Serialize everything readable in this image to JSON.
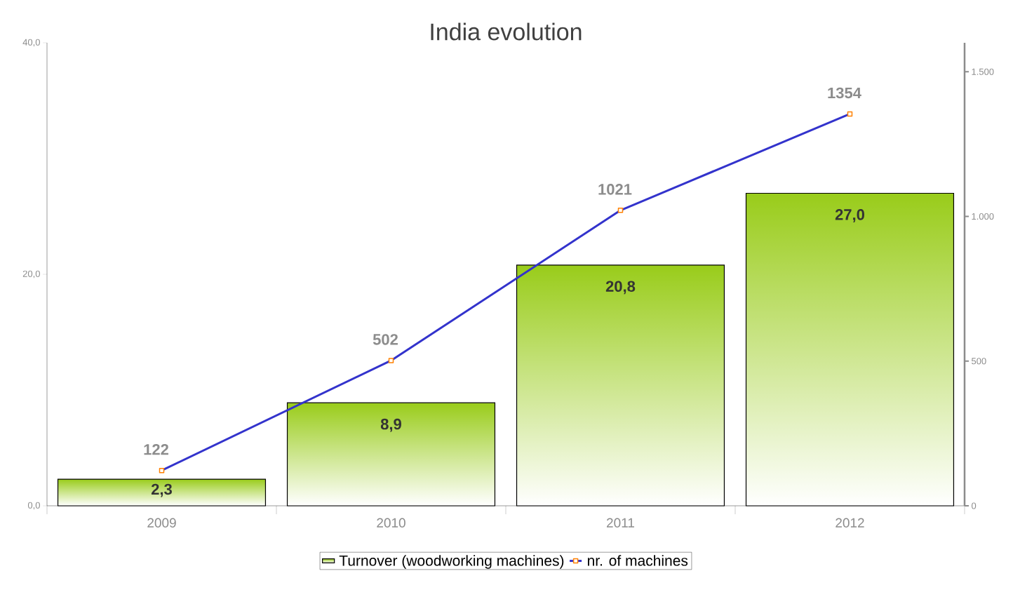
{
  "chart_data": {
    "type": "bar",
    "title": "India evolution",
    "categories": [
      "2009",
      "2010",
      "2011",
      "2012"
    ],
    "series": [
      {
        "name": "Turnover (woodworking machines)",
        "color": "#99cc1a",
        "values": [
          2.3,
          8.9,
          20.8,
          27.0
        ],
        "value_labels": [
          "2,3",
          "8,9",
          "20,8",
          "27,0"
        ]
      },
      {
        "name": "nr. of machines",
        "type": "line",
        "axis": "y2",
        "color": "#3333cc",
        "marker": "square",
        "values": [
          122,
          502,
          1021,
          1354
        ],
        "value_labels": [
          "122",
          "502",
          "1021",
          "1354"
        ]
      }
    ],
    "ylim": [
      0,
      40
    ],
    "yticks": [
      {
        "value": 0,
        "label": "0,0"
      },
      {
        "value": 20,
        "label": "20,0"
      },
      {
        "value": 40,
        "label": "40,0"
      }
    ],
    "y2lim": [
      0,
      1600
    ],
    "y2ticks": [
      {
        "value": 0,
        "label": "0"
      },
      {
        "value": 500,
        "label": "500"
      },
      {
        "value": 1000,
        "label": "1.000"
      },
      {
        "value": 1500,
        "label": "1.500"
      }
    ],
    "grid": false,
    "legend": "bottom"
  }
}
